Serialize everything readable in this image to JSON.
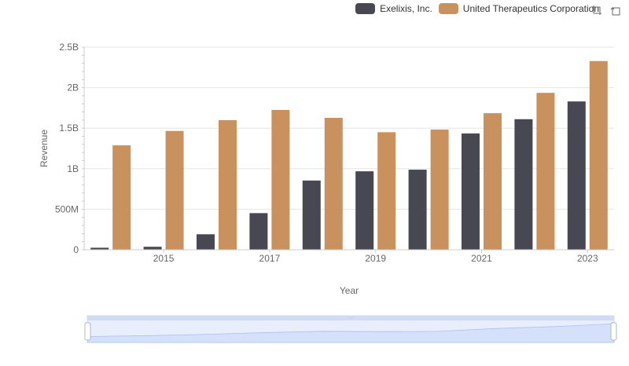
{
  "chart_data": {
    "type": "bar",
    "title": "",
    "xlabel": "Year",
    "ylabel": "Revenue",
    "categories": [
      "2014",
      "2015",
      "2016",
      "2017",
      "2018",
      "2019",
      "2020",
      "2021",
      "2022",
      "2023"
    ],
    "x_tick_labels": [
      "2015",
      "2017",
      "2019",
      "2021",
      "2023"
    ],
    "y_tick_labels": [
      "0",
      "500M",
      "1B",
      "1.5B",
      "2B",
      "2.5B"
    ],
    "ylim": [
      0,
      2500000000
    ],
    "series": [
      {
        "name": "Exelixis, Inc.",
        "color": "#484852",
        "values": [
          25000000,
          37000000,
          191000000,
          452000000,
          854000000,
          968000000,
          988000000,
          1435000000,
          1611000000,
          1830000000
        ]
      },
      {
        "name": "United Therapeutics Corporation",
        "color": "#c9915d",
        "values": [
          1288000000,
          1466000000,
          1599000000,
          1725000000,
          1628000000,
          1450000000,
          1483000000,
          1685000000,
          1936000000,
          2328000000
        ]
      }
    ],
    "grid": true,
    "legend_position": "top-right"
  },
  "toolbox": {
    "zoom_icon": "zoom-icon",
    "restore_icon": "restore-icon"
  },
  "datazoom": {
    "accent": "#5b8ff9"
  }
}
